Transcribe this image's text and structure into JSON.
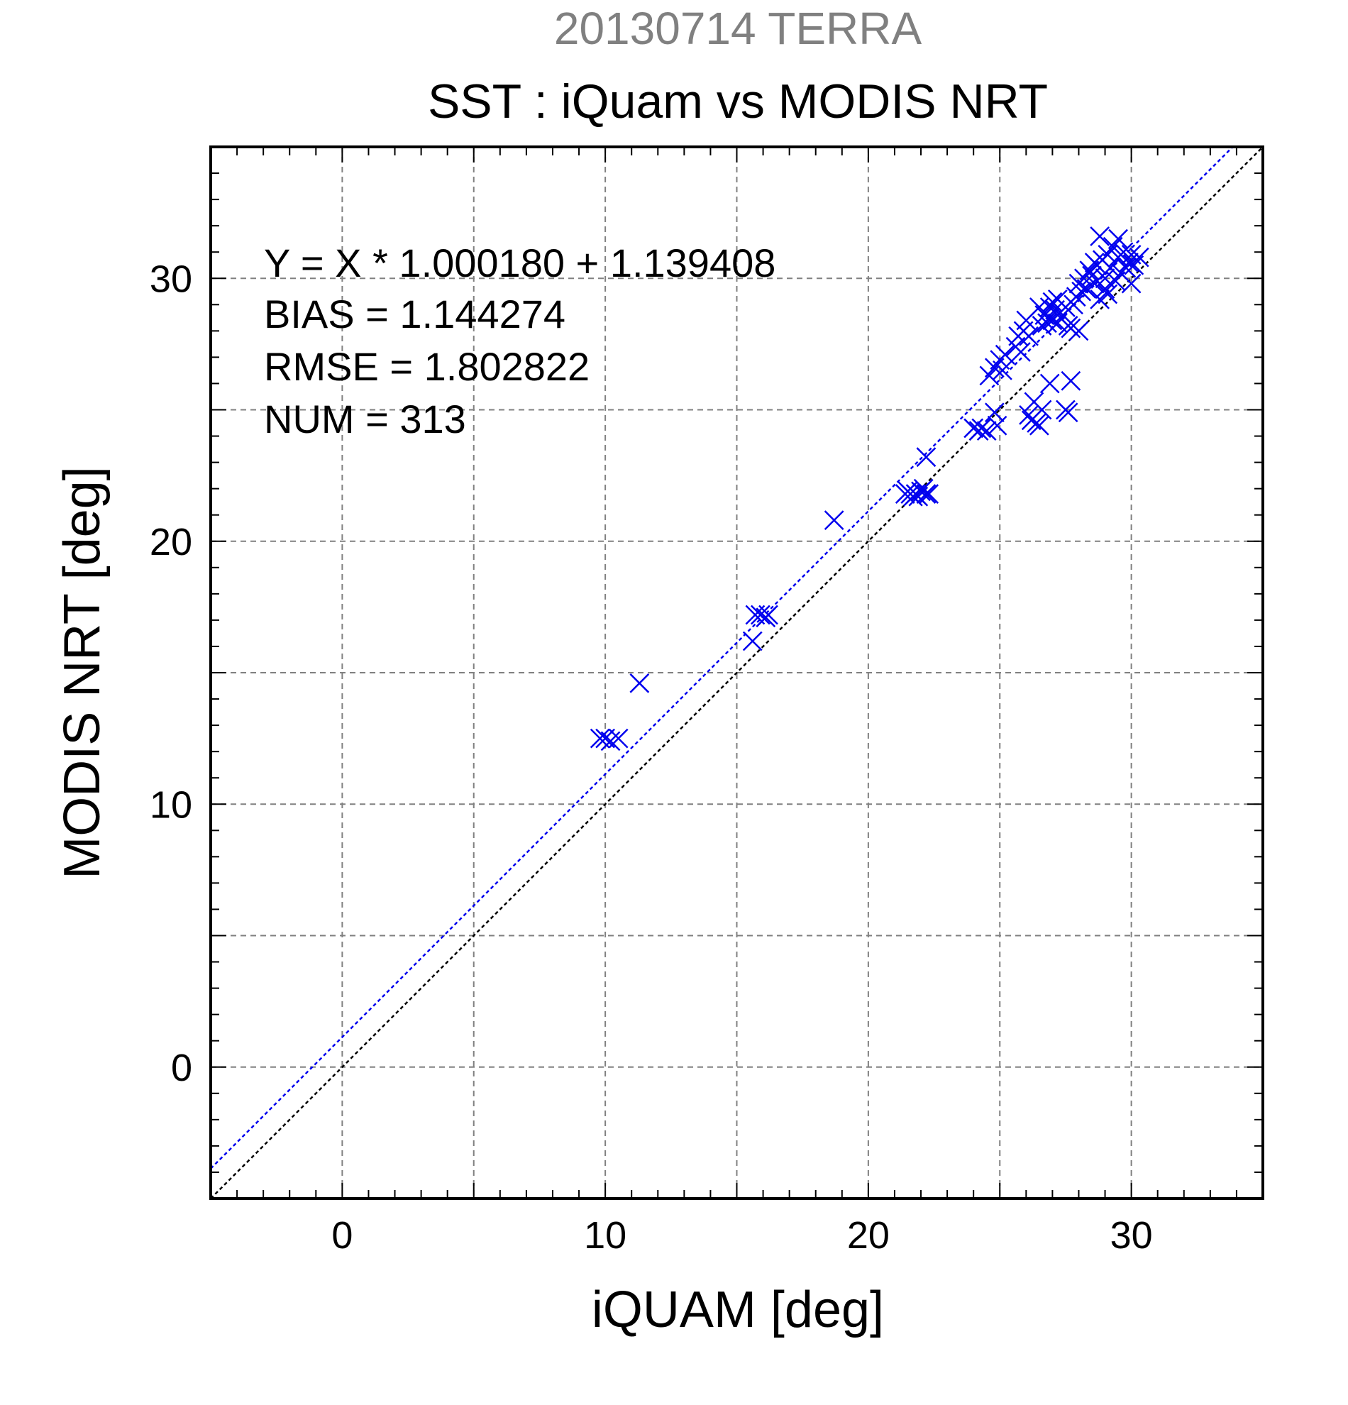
{
  "chart_data": {
    "type": "scatter",
    "title": "20130714 TERRA",
    "subtitle": "SST : iQuam vs MODIS NRT",
    "xlabel": "iQUAM [deg]",
    "ylabel": "MODIS NRT [deg]",
    "xlim": [
      -5,
      35
    ],
    "ylim": [
      -5,
      35
    ],
    "major_ticks": [
      0,
      10,
      20,
      30
    ],
    "tick_labels": [
      "0",
      "10",
      "20",
      "30"
    ],
    "gridlines": [
      -5,
      0,
      5,
      10,
      15,
      20,
      25,
      30,
      35
    ],
    "grid": true,
    "annotations": [
      "Y = X * 1.000180 + 1.139408",
      "BIAS = 1.144274",
      "RMSE = 1.802822",
      "NUM = 313"
    ],
    "regression": {
      "slope": 1.00018,
      "intercept": 1.139408,
      "color": "#0000ee"
    },
    "identity_line": {
      "slope": 1,
      "intercept": 0,
      "color": "#000000"
    },
    "colors": {
      "points": "#0000ee",
      "title": "#808080",
      "grid": "#808080"
    },
    "series": [
      {
        "marker": "x",
        "points": [
          [
            9.8,
            12.5
          ],
          [
            10.0,
            12.5
          ],
          [
            10.2,
            12.4
          ],
          [
            10.5,
            12.5
          ],
          [
            11.3,
            14.6
          ],
          [
            15.6,
            16.2
          ],
          [
            15.7,
            17.2
          ],
          [
            15.9,
            17.2
          ],
          [
            16.1,
            17.1
          ],
          [
            16.2,
            17.2
          ],
          [
            18.7,
            20.8
          ],
          [
            21.4,
            21.8
          ],
          [
            21.5,
            21.9
          ],
          [
            21.6,
            21.8
          ],
          [
            21.7,
            21.7
          ],
          [
            21.8,
            21.8
          ],
          [
            21.9,
            21.7
          ],
          [
            22.0,
            21.9
          ],
          [
            22.1,
            22.0
          ],
          [
            22.2,
            21.8
          ],
          [
            22.3,
            21.8
          ],
          [
            22.2,
            23.2
          ],
          [
            24.0,
            24.3
          ],
          [
            24.2,
            24.2
          ],
          [
            24.3,
            24.3
          ],
          [
            24.5,
            24.2
          ],
          [
            24.8,
            24.9
          ],
          [
            24.9,
            24.4
          ],
          [
            24.6,
            26.3
          ],
          [
            24.8,
            26.6
          ],
          [
            25.0,
            26.9
          ],
          [
            25.1,
            26.5
          ],
          [
            25.2,
            27.1
          ],
          [
            25.6,
            27.4
          ],
          [
            25.7,
            27.8
          ],
          [
            25.8,
            27.2
          ],
          [
            25.9,
            28.0
          ],
          [
            26.0,
            28.4
          ],
          [
            26.1,
            27.8
          ],
          [
            26.1,
            24.8
          ],
          [
            26.2,
            24.6
          ],
          [
            26.3,
            25.3
          ],
          [
            26.4,
            24.5
          ],
          [
            26.5,
            24.4
          ],
          [
            26.6,
            25.0
          ],
          [
            26.5,
            28.9
          ],
          [
            26.6,
            28.2
          ],
          [
            26.7,
            28.6
          ],
          [
            26.8,
            28.3
          ],
          [
            26.9,
            28.5
          ],
          [
            26.9,
            26.0
          ],
          [
            26.9,
            28.9
          ],
          [
            27.0,
            29.1
          ],
          [
            27.0,
            28.4
          ],
          [
            27.1,
            28.8
          ],
          [
            27.2,
            28.3
          ],
          [
            27.2,
            29.2
          ],
          [
            27.3,
            28.7
          ],
          [
            27.4,
            28.6
          ],
          [
            27.5,
            28.9
          ],
          [
            27.5,
            25.0
          ],
          [
            27.6,
            24.9
          ],
          [
            27.7,
            26.1
          ],
          [
            27.6,
            28.2
          ],
          [
            27.7,
            28.1
          ],
          [
            27.8,
            29.0
          ],
          [
            27.9,
            29.3
          ],
          [
            28.0,
            28.0
          ],
          [
            28.0,
            29.8
          ],
          [
            28.1,
            29.5
          ],
          [
            28.2,
            30.0
          ],
          [
            28.3,
            29.6
          ],
          [
            28.4,
            30.3
          ],
          [
            28.5,
            30.1
          ],
          [
            28.6,
            29.8
          ],
          [
            28.7,
            30.5
          ],
          [
            28.8,
            29.2
          ],
          [
            28.9,
            30.7
          ],
          [
            29.0,
            30.0
          ],
          [
            29.1,
            30.9
          ],
          [
            29.1,
            29.4
          ],
          [
            29.2,
            30.4
          ],
          [
            29.3,
            31.2
          ],
          [
            29.4,
            29.9
          ],
          [
            29.5,
            30.8
          ],
          [
            29.6,
            30.2
          ],
          [
            29.7,
            31.0
          ],
          [
            29.8,
            30.4
          ],
          [
            29.9,
            30.6
          ],
          [
            30.0,
            30.9
          ],
          [
            30.1,
            30.5
          ],
          [
            30.3,
            30.8
          ],
          [
            28.8,
            31.6
          ],
          [
            29.5,
            31.5
          ],
          [
            30.0,
            29.8
          ],
          [
            29.0,
            29.6
          ],
          [
            28.6,
            30.6
          ]
        ]
      }
    ]
  }
}
